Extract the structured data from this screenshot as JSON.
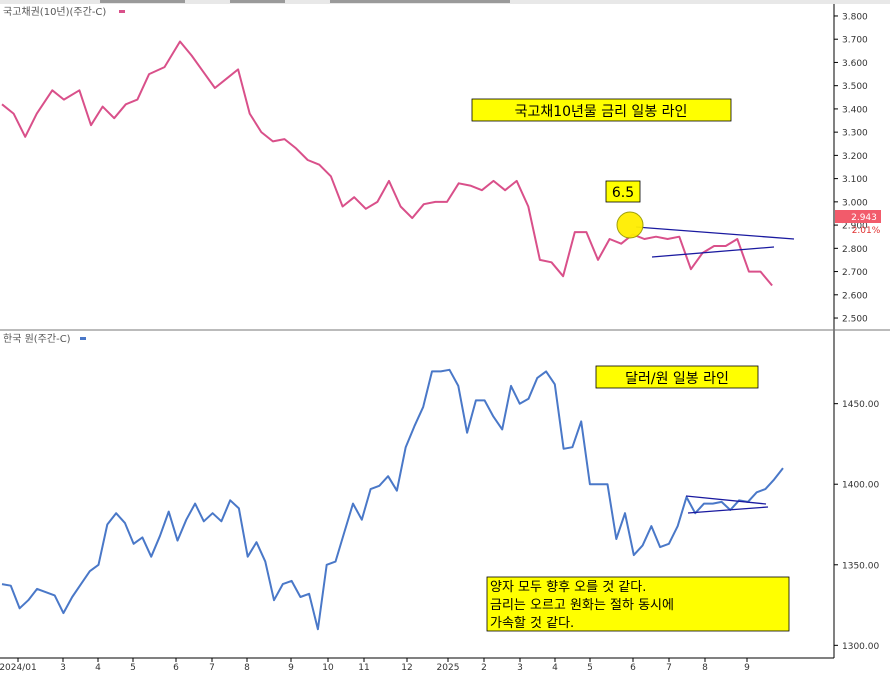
{
  "colors": {
    "rate_line": "#d9508a",
    "fx_line": "#4a78c8",
    "trend": "#1a1aa0",
    "annotation_bg": "#ffff00",
    "current_bg": "#f25b6b",
    "current_pct": "#e03030",
    "grid_text": "#333333",
    "circle_fill": "#ffee00"
  },
  "chart_data": [
    {
      "type": "line",
      "legend": "국고채권(10년)(주간-C)",
      "y_ticks": [
        "3.800",
        "3.700",
        "3.600",
        "3.500",
        "3.400",
        "3.300",
        "3.200",
        "3.100",
        "3.000",
        "2.900",
        "2.800",
        "2.700",
        "2.600",
        "2.500"
      ],
      "ylim": [
        2.47,
        3.83
      ],
      "current_value_label": "2.943",
      "current_change_label": "2.01%",
      "annotation": "국고채10년물 금리 일봉 라인",
      "marker_label": "6.5",
      "x_range": [
        0,
        100
      ],
      "series": [
        {
          "x": [
            0,
            1.5,
            3,
            4.5,
            6.5,
            8,
            10,
            11.5,
            13,
            14.5,
            16,
            17.5,
            19,
            21,
            23,
            24.5,
            26,
            27.5,
            29,
            30.5,
            32,
            33.5,
            35,
            36.5,
            38,
            39.5,
            41,
            42.5,
            44,
            45.5,
            47,
            48.5,
            50,
            51.5,
            53,
            54.5,
            56,
            57.5,
            59,
            60.5,
            62,
            63.5,
            65,
            66.5,
            68,
            69.5,
            71,
            72.5,
            74,
            75.5,
            77,
            78.5,
            80,
            81.5,
            83,
            84.5,
            86,
            87.5,
            89,
            90.5,
            92,
            93.5,
            95,
            96.5,
            98,
            99.5
          ],
          "y": [
            3.42,
            3.38,
            3.28,
            3.38,
            3.48,
            3.44,
            3.48,
            3.33,
            3.41,
            3.36,
            3.42,
            3.44,
            3.55,
            3.58,
            3.69,
            3.63,
            3.56,
            3.49,
            3.53,
            3.57,
            3.38,
            3.3,
            3.26,
            3.27,
            3.23,
            3.18,
            3.16,
            3.11,
            2.98,
            3.02,
            2.97,
            3.0,
            3.09,
            2.98,
            2.93,
            2.99,
            3.0,
            3.0,
            3.08,
            3.07,
            3.05,
            3.09,
            3.05,
            3.09,
            2.98,
            2.75,
            2.74,
            2.68,
            2.87,
            2.87,
            2.75,
            2.84,
            2.82,
            2.86,
            2.84,
            2.85,
            2.84,
            2.85,
            2.71,
            2.78,
            2.81,
            2.81,
            2.84,
            2.7,
            2.7,
            2.64
          ]
        }
      ]
    },
    {
      "type": "line",
      "legend": "한국 원(주간-C)",
      "y_ticks": [
        "1450.00",
        "1400.00",
        "1350.00",
        "1300.00"
      ],
      "ylim": [
        1294,
        1492
      ],
      "annotation": "달러/원 일봉 라인",
      "note": [
        "양자 모두 향후 오를 것 같다.",
        "금리는 오르고 원화는 절하 동시에",
        "가속할 것 같다."
      ],
      "x_labels": [
        "2024/01",
        "3",
        "4",
        "5",
        "6",
        "7",
        "8",
        "9",
        "10",
        "11",
        "12",
        "2025",
        "2",
        "3",
        "4",
        "5",
        "6",
        "7",
        "8",
        "9"
      ],
      "series": [
        {
          "values": [
            1338,
            1337,
            1323,
            1328,
            1335,
            1333,
            1331,
            1320,
            1330,
            1338,
            1346,
            1350,
            1375,
            1382,
            1376,
            1363,
            1367,
            1355,
            1368,
            1383,
            1365,
            1378,
            1388,
            1377,
            1382,
            1377,
            1390,
            1385,
            1355,
            1364,
            1352,
            1328,
            1338,
            1340,
            1330,
            1332,
            1310,
            1350,
            1352,
            1370,
            1388,
            1378,
            1397,
            1399,
            1405,
            1396,
            1423,
            1436,
            1448,
            1470,
            1470,
            1471,
            1461,
            1432,
            1452,
            1452,
            1442,
            1434,
            1461,
            1450,
            1453,
            1466,
            1470,
            1462,
            1422,
            1423,
            1439,
            1400,
            1400,
            1400,
            1366,
            1382,
            1356,
            1362,
            1374,
            1361,
            1363,
            1374,
            1392,
            1382,
            1388,
            1388,
            1389,
            1384,
            1390,
            1389,
            1395,
            1397,
            1403,
            1410
          ]
        }
      ]
    }
  ]
}
